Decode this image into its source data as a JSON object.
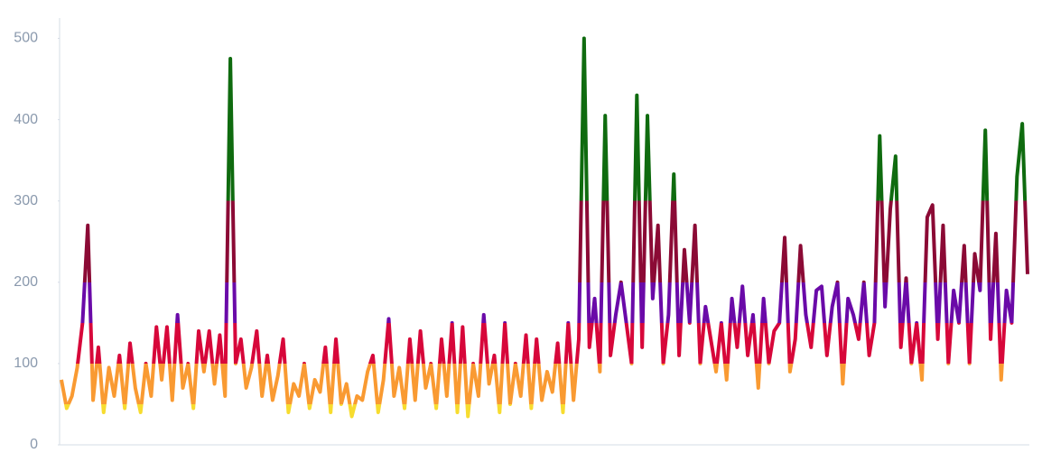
{
  "chart_data": {
    "type": "line",
    "values": [
      80,
      45,
      60,
      95,
      150,
      270,
      55,
      120,
      40,
      95,
      60,
      110,
      45,
      125,
      70,
      40,
      100,
      60,
      145,
      80,
      145,
      55,
      160,
      70,
      100,
      45,
      140,
      90,
      140,
      75,
      135,
      60,
      475,
      100,
      130,
      70,
      95,
      140,
      60,
      110,
      55,
      85,
      130,
      40,
      75,
      60,
      100,
      45,
      80,
      65,
      120,
      40,
      130,
      50,
      75,
      35,
      60,
      55,
      90,
      110,
      40,
      80,
      155,
      60,
      95,
      45,
      130,
      55,
      140,
      70,
      100,
      45,
      130,
      60,
      150,
      40,
      145,
      35,
      100,
      60,
      160,
      75,
      110,
      40,
      150,
      50,
      100,
      60,
      135,
      45,
      130,
      55,
      90,
      65,
      125,
      40,
      150,
      55,
      130,
      500,
      120,
      180,
      90,
      405,
      110,
      160,
      200,
      150,
      100,
      430,
      120,
      405,
      180,
      270,
      100,
      160,
      333,
      110,
      240,
      150,
      270,
      100,
      170,
      130,
      90,
      150,
      80,
      180,
      120,
      195,
      110,
      160,
      70,
      180,
      100,
      140,
      150,
      255,
      90,
      130,
      245,
      160,
      120,
      190,
      195,
      110,
      170,
      200,
      75,
      180,
      160,
      130,
      200,
      110,
      150,
      380,
      170,
      290,
      355,
      120,
      205,
      100,
      150,
      80,
      280,
      295,
      130,
      270,
      100,
      190,
      150,
      245,
      100,
      235,
      190,
      387,
      130,
      260,
      80,
      190,
      150,
      330,
      395,
      210
    ],
    "ylim": [
      0,
      525
    ],
    "yticks": [
      0,
      100,
      200,
      300,
      400,
      500
    ],
    "color_bands": [
      {
        "below": 50,
        "color": "#f7dc2f"
      },
      {
        "below": 100,
        "color": "#f99a32"
      },
      {
        "below": 150,
        "color": "#d7073a"
      },
      {
        "below": 200,
        "color": "#6a0aa8"
      },
      {
        "below": 300,
        "color": "#8b0a35"
      },
      {
        "color": "#0f6b0f"
      }
    ]
  }
}
